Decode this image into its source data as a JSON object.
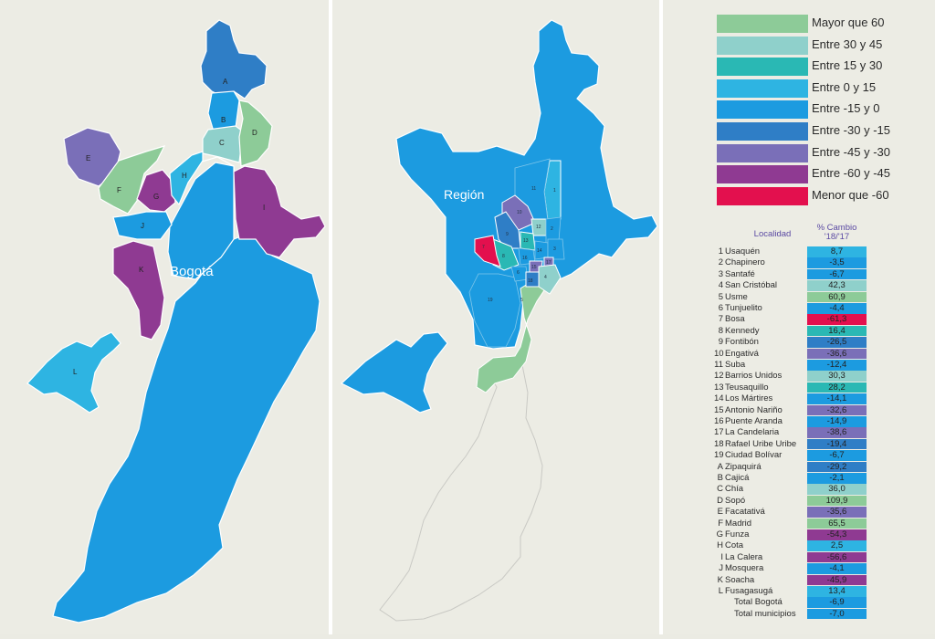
{
  "colors": {
    "background": "#ECECE4",
    "mayor_60": "#8DCB98",
    "30_45": "#8FD0CB",
    "15_30": "#2AB8B4",
    "0_15": "#2EB4E2",
    "m15_0": "#1C9BE0",
    "m30_m15": "#2F7EC6",
    "m45_m30": "#7A6FB8",
    "m60_m45": "#8F3A92",
    "menor_m60": "#E3104E",
    "outline": "#c9c9c4"
  },
  "map_left": {
    "label": "Bogotá",
    "markers": [
      "A",
      "B",
      "C",
      "D",
      "E",
      "F",
      "G",
      "H",
      "I",
      "J",
      "K",
      "L"
    ]
  },
  "map_middle": {
    "label": "Región",
    "markers": [
      "1",
      "2",
      "3",
      "4",
      "5",
      "6",
      "7",
      "8",
      "9",
      "10",
      "11",
      "12",
      "13",
      "14",
      "15",
      "16",
      "17",
      "18",
      "19"
    ]
  },
  "legend": [
    {
      "label": "Mayor que 60",
      "color": "#8DCB98"
    },
    {
      "label": "Entre 30 y 45",
      "color": "#8FD0CB"
    },
    {
      "label": "Entre 15 y 30",
      "color": "#2AB8B4"
    },
    {
      "label": "Entre 0 y 15",
      "color": "#2EB4E2"
    },
    {
      "label": "Entre -15 y 0",
      "color": "#1C9BE0"
    },
    {
      "label": "Entre -30 y -15",
      "color": "#2F7EC6"
    },
    {
      "label": "Entre -45 y -30",
      "color": "#7A6FB8"
    },
    {
      "label": "Entre -60 y -45",
      "color": "#8F3A92"
    },
    {
      "label": "Menor que -60",
      "color": "#E3104E"
    }
  ],
  "table": {
    "col_localidad": "Localidad",
    "col_cambio_1": "% Cambio",
    "col_cambio_2": "'18/'17",
    "rows": [
      {
        "id": "1",
        "name": "Usaquén",
        "value": "8,7",
        "color": "#2EB4E2"
      },
      {
        "id": "2",
        "name": "Chapinero",
        "value": "-3,5",
        "color": "#1C9BE0"
      },
      {
        "id": "3",
        "name": "Santafé",
        "value": "-6,7",
        "color": "#1C9BE0"
      },
      {
        "id": "4",
        "name": "San Cristóbal",
        "value": "42,3",
        "color": "#8FD0CB"
      },
      {
        "id": "5",
        "name": "Usme",
        "value": "60,9",
        "color": "#8DCB98"
      },
      {
        "id": "6",
        "name": "Tunjuelito",
        "value": "-4,4",
        "color": "#1C9BE0"
      },
      {
        "id": "7",
        "name": "Bosa",
        "value": "-61,3",
        "color": "#E3104E"
      },
      {
        "id": "8",
        "name": "Kennedy",
        "value": "16,4",
        "color": "#2AB8B4"
      },
      {
        "id": "9",
        "name": "Fontibón",
        "value": "-26,5",
        "color": "#2F7EC6"
      },
      {
        "id": "10",
        "name": "Engativá",
        "value": "-36,6",
        "color": "#7A6FB8"
      },
      {
        "id": "11",
        "name": "Suba",
        "value": "-12,4",
        "color": "#1C9BE0"
      },
      {
        "id": "12",
        "name": "Barrios Unidos",
        "value": "30,3",
        "color": "#8FD0CB"
      },
      {
        "id": "13",
        "name": "Teusaquillo",
        "value": "28,2",
        "color": "#2AB8B4"
      },
      {
        "id": "14",
        "name": "Los Mártires",
        "value": "-14,1",
        "color": "#1C9BE0"
      },
      {
        "id": "15",
        "name": "Antonio Nariño",
        "value": "-32,6",
        "color": "#7A6FB8"
      },
      {
        "id": "16",
        "name": "Puente Aranda",
        "value": "-14,9",
        "color": "#1C9BE0"
      },
      {
        "id": "17",
        "name": "La Candelaria",
        "value": "-38,6",
        "color": "#7A6FB8"
      },
      {
        "id": "18",
        "name": "Rafael Uribe Uribe",
        "value": "-19,4",
        "color": "#2F7EC6"
      },
      {
        "id": "19",
        "name": "Ciudad Bolívar",
        "value": "-6,7",
        "color": "#1C9BE0"
      },
      {
        "id": "A",
        "name": "Zipaquirá",
        "value": "-29,2",
        "color": "#2F7EC6"
      },
      {
        "id": "B",
        "name": "Cajicá",
        "value": "-2,1",
        "color": "#1C9BE0"
      },
      {
        "id": "C",
        "name": "Chía",
        "value": "36,0",
        "color": "#8FD0CB"
      },
      {
        "id": "D",
        "name": "Sopó",
        "value": "109,9",
        "color": "#8DCB98"
      },
      {
        "id": "E",
        "name": "Facatativá",
        "value": "-35,6",
        "color": "#7A6FB8"
      },
      {
        "id": "F",
        "name": "Madrid",
        "value": "65,5",
        "color": "#8DCB98"
      },
      {
        "id": "G",
        "name": "Funza",
        "value": "-54,3",
        "color": "#8F3A92"
      },
      {
        "id": "H",
        "name": "Cota",
        "value": "2,5",
        "color": "#2EB4E2"
      },
      {
        "id": "I",
        "name": "La Calera",
        "value": "-56,6",
        "color": "#8F3A92"
      },
      {
        "id": "J",
        "name": "Mosquera",
        "value": "-4,1",
        "color": "#1C9BE0"
      },
      {
        "id": "K",
        "name": "Soacha",
        "value": "-45,9",
        "color": "#8F3A92"
      },
      {
        "id": "L",
        "name": "Fusagasugá",
        "value": "13,4",
        "color": "#2EB4E2"
      },
      {
        "id": "",
        "name": "Total Bogotá",
        "value": "-6,9",
        "color": "#1C9BE0"
      },
      {
        "id": "",
        "name": "Total municipios",
        "value": "-7,0",
        "color": "#1C9BE0"
      }
    ]
  }
}
